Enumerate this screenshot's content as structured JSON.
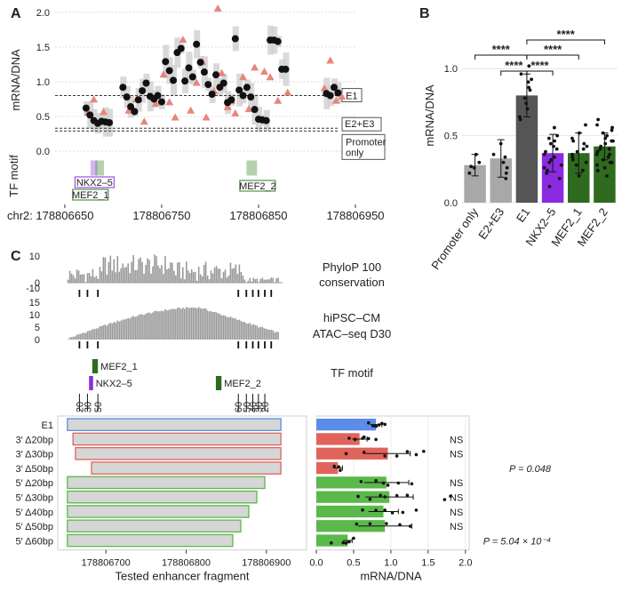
{
  "chart_data": [
    {
      "panel": "A",
      "type": "scatter",
      "ylabel": "mRNA/DNA",
      "y_ticks": [
        "0.0",
        "0.5",
        "1.0",
        "1.5",
        "2.0"
      ],
      "ylim": [
        0,
        2.05
      ],
      "xlim": [
        178806640,
        178806950
      ],
      "x_prefix": "chr2:",
      "x_ticks": [
        {
          "v": 178806650,
          "t": "178806650"
        },
        {
          "v": 178806750,
          "t": "178806750"
        },
        {
          "v": 178806850,
          "t": "178806850"
        },
        {
          "v": 178806950,
          "t": "178806950"
        }
      ],
      "reference_lines": [
        {
          "value": 0.8,
          "label": "E1"
        },
        {
          "value": 0.33,
          "label": "E2+E3"
        },
        {
          "value": 0.29,
          "label": "Promoter only"
        }
      ],
      "black_points": [
        {
          "x": 178806672,
          "y": 0.62
        },
        {
          "x": 178806676,
          "y": 0.52
        },
        {
          "x": 178806680,
          "y": 0.44
        },
        {
          "x": 178806684,
          "y": 0.4
        },
        {
          "x": 178806688,
          "y": 0.43
        },
        {
          "x": 178806692,
          "y": 0.42
        },
        {
          "x": 178806696,
          "y": 0.41
        },
        {
          "x": 178806710,
          "y": 0.92
        },
        {
          "x": 178806714,
          "y": 0.78
        },
        {
          "x": 178806718,
          "y": 0.64
        },
        {
          "x": 178806722,
          "y": 0.57
        },
        {
          "x": 178806726,
          "y": 0.74
        },
        {
          "x": 178806730,
          "y": 0.87
        },
        {
          "x": 178806734,
          "y": 0.98
        },
        {
          "x": 178806738,
          "y": 0.79
        },
        {
          "x": 178806742,
          "y": 0.75
        },
        {
          "x": 178806746,
          "y": 0.8
        },
        {
          "x": 178806750,
          "y": 0.71
        },
        {
          "x": 178806754,
          "y": 1.29
        },
        {
          "x": 178806758,
          "y": 1.16
        },
        {
          "x": 178806762,
          "y": 1.02
        },
        {
          "x": 178806766,
          "y": 1.42
        },
        {
          "x": 178806770,
          "y": 1.48
        },
        {
          "x": 178806774,
          "y": 1.01
        },
        {
          "x": 178806778,
          "y": 1.2
        },
        {
          "x": 178806782,
          "y": 1.07
        },
        {
          "x": 178806786,
          "y": 1.54
        },
        {
          "x": 178806790,
          "y": 1.28
        },
        {
          "x": 178806794,
          "y": 1.14
        },
        {
          "x": 178806798,
          "y": 0.96
        },
        {
          "x": 178806802,
          "y": 0.82
        },
        {
          "x": 178806806,
          "y": 1.1
        },
        {
          "x": 178806810,
          "y": 0.92
        },
        {
          "x": 178806814,
          "y": 0.98
        },
        {
          "x": 178806818,
          "y": 0.7
        },
        {
          "x": 178806822,
          "y": 0.74
        },
        {
          "x": 178806826,
          "y": 1.62
        },
        {
          "x": 178806830,
          "y": 0.88
        },
        {
          "x": 178806834,
          "y": 0.8
        },
        {
          "x": 178806838,
          "y": 0.92
        },
        {
          "x": 178806842,
          "y": 0.78
        },
        {
          "x": 178806846,
          "y": 0.6
        },
        {
          "x": 178806850,
          "y": 0.46
        },
        {
          "x": 178806854,
          "y": 0.45
        },
        {
          "x": 178806858,
          "y": 0.44
        },
        {
          "x": 178806862,
          "y": 1.6
        },
        {
          "x": 178806866,
          "y": 1.6
        },
        {
          "x": 178806870,
          "y": 1.58
        },
        {
          "x": 178806874,
          "y": 1.18
        },
        {
          "x": 178806878,
          "y": 1.18
        },
        {
          "x": 178806920,
          "y": 0.83
        },
        {
          "x": 178806924,
          "y": 0.8
        },
        {
          "x": 178806928,
          "y": 0.92
        },
        {
          "x": 178806932,
          "y": 0.84
        }
      ],
      "triangle_points": [
        {
          "x": 178806674,
          "y": 0.55
        },
        {
          "x": 178806680,
          "y": 0.74
        },
        {
          "x": 178806690,
          "y": 0.56
        },
        {
          "x": 178806716,
          "y": 0.58
        },
        {
          "x": 178806724,
          "y": 0.74
        },
        {
          "x": 178806732,
          "y": 0.42
        },
        {
          "x": 178806744,
          "y": 0.68
        },
        {
          "x": 178806752,
          "y": 1.1
        },
        {
          "x": 178806758,
          "y": 0.7
        },
        {
          "x": 178806764,
          "y": 0.48
        },
        {
          "x": 178806772,
          "y": 1.6
        },
        {
          "x": 178806780,
          "y": 0.58
        },
        {
          "x": 178806786,
          "y": 0.98
        },
        {
          "x": 178806792,
          "y": 1.28
        },
        {
          "x": 178806796,
          "y": 0.48
        },
        {
          "x": 178806804,
          "y": 0.86
        },
        {
          "x": 178806808,
          "y": 2.05
        },
        {
          "x": 178806812,
          "y": 1.12
        },
        {
          "x": 178806818,
          "y": 0.63
        },
        {
          "x": 178806822,
          "y": 0.72
        },
        {
          "x": 178806826,
          "y": 0.54
        },
        {
          "x": 178806834,
          "y": 1.06
        },
        {
          "x": 178806840,
          "y": 0.6
        },
        {
          "x": 178806846,
          "y": 1.2
        },
        {
          "x": 178806856,
          "y": 1.14
        },
        {
          "x": 178806862,
          "y": 1.06
        },
        {
          "x": 178806870,
          "y": 0.72
        },
        {
          "x": 178806880,
          "y": 0.84
        },
        {
          "x": 178806918,
          "y": 0.9
        },
        {
          "x": 178806924,
          "y": 1.3
        },
        {
          "x": 178806930,
          "y": 0.72
        },
        {
          "x": 178806936,
          "y": 0.78
        }
      ],
      "motif_label": "TF motif",
      "motifs": [
        {
          "name": "NKX2–5",
          "start": 178806677,
          "end": 178806683,
          "color": "#8a2be2"
        },
        {
          "name": "MEF2_1",
          "start": 178806682,
          "end": 178806690,
          "color": "#2e7d1f"
        },
        {
          "name": "MEF2_2",
          "start": 178806838,
          "end": 178806848,
          "color": "#2e7d1f"
        }
      ]
    },
    {
      "panel": "B",
      "type": "bar",
      "ylabel": "mRNA/DNA",
      "ylim": [
        0,
        1.3
      ],
      "y_ticks": [
        "0.0",
        "0.5",
        "1.0"
      ],
      "categories": [
        "Promoter only",
        "E2+E3",
        "E1",
        "NKX2–5",
        "MEF2_1",
        "MEF2_2"
      ],
      "values": [
        0.28,
        0.33,
        0.8,
        0.37,
        0.37,
        0.42
      ],
      "errors": [
        0.08,
        0.14,
        0.16,
        0.14,
        0.15,
        0.1
      ],
      "colors": [
        "#a8a8a8",
        "#a8a8a8",
        "#555555",
        "#8a2be2",
        "#2e6b1f",
        "#2e6b1f"
      ],
      "significance": [
        {
          "from": 0,
          "to": 2,
          "label": "****"
        },
        {
          "from": 1,
          "to": 2,
          "label": "****"
        },
        {
          "from": 2,
          "to": 3,
          "label": "****"
        },
        {
          "from": 2,
          "to": 4,
          "label": "****"
        },
        {
          "from": 2,
          "to": 5,
          "label": "****"
        }
      ],
      "points": [
        [
          0.22,
          0.3,
          0.36,
          0.26,
          0.27
        ],
        [
          0.18,
          0.26,
          0.3,
          0.36,
          0.44,
          0.22,
          0.34
        ],
        [
          0.64,
          0.7,
          0.78,
          0.84,
          0.92,
          1.02,
          0.86,
          0.62,
          0.74,
          0.9,
          0.96
        ],
        [
          0.12,
          0.22,
          0.28,
          0.34,
          0.4,
          0.46,
          0.5,
          0.56,
          0.3,
          0.24,
          0.38,
          0.44,
          0.18,
          0.32,
          0.48,
          0.26,
          0.36,
          0.42
        ],
        [
          0.2,
          0.28,
          0.34,
          0.4,
          0.46,
          0.52,
          0.58,
          0.3,
          0.36,
          0.42,
          0.24,
          0.48,
          0.32,
          0.38,
          0.44
        ],
        [
          0.2,
          0.26,
          0.3,
          0.34,
          0.38,
          0.42,
          0.46,
          0.5,
          0.54,
          0.58,
          0.62,
          0.28,
          0.36,
          0.4,
          0.44,
          0.48,
          0.32,
          0.52,
          0.56,
          0.24,
          0.3,
          0.4,
          0.46,
          0.36
        ]
      ]
    },
    {
      "panel": "C",
      "type": "bar",
      "track1_label": [
        "PhyloP 100",
        "conservation"
      ],
      "track1_ticks": [
        "10",
        "0",
        "-10"
      ],
      "track2_label": [
        "hiPSC–CM",
        "ATAC–seq D30"
      ],
      "track2_ticks": [
        "15",
        "10",
        "5",
        "0"
      ],
      "motif_label": "TF motif",
      "motifs": [
        {
          "name": "MEF2_1",
          "start": 178806683,
          "end": 178806690,
          "color": "#2e6b1f"
        },
        {
          "name": "NKX2–5",
          "start": 178806679,
          "end": 178806684,
          "color": "#8a2be2"
        },
        {
          "name": "MEF2_2",
          "start": 178806837,
          "end": 178806844,
          "color": "#2e6b1f"
        }
      ],
      "deletion_ticks_3p": [
        "20",
        "30",
        "50"
      ],
      "deletion_ticks_5p": [
        "60",
        "50",
        "40",
        "30",
        "20"
      ],
      "xlim": [
        178806640,
        178806950
      ],
      "x_ticks": [
        {
          "v": 178806700,
          "t": "178806700"
        },
        {
          "v": 178806800,
          "t": "178806800"
        },
        {
          "v": 178806900,
          "t": "178806900"
        }
      ],
      "xlabel": "Tested enhancer fragment",
      "rows": [
        {
          "label": "E1",
          "start": 178806652,
          "end": 178806918,
          "color": "#5b8ce8",
          "value": 0.8,
          "err": 0.08,
          "sig": "",
          "points": [
            0.7,
            0.76,
            0.84,
            0.92,
            0.88,
            0.8
          ]
        },
        {
          "label": "3′ Δ20bp",
          "start": 178806659,
          "end": 178806918,
          "color": "#e0645c",
          "value": 0.58,
          "err": 0.1,
          "sig": "NS",
          "points": [
            0.44,
            0.52,
            0.62,
            0.7,
            0.8,
            0.64
          ]
        },
        {
          "label": "3′ Δ30bp",
          "start": 178806662,
          "end": 178806918,
          "color": "#e0645c",
          "value": 0.96,
          "err": 0.3,
          "sig": "NS",
          "points": [
            0.4,
            0.64,
            0.92,
            1.08,
            1.22,
            1.34,
            1.44
          ]
        },
        {
          "label": "3′ Δ50bp",
          "start": 178806682,
          "end": 178806918,
          "color": "#e0645c",
          "value": 0.29,
          "err": 0.06,
          "sig": "P = 0.048",
          "points": [
            0.24,
            0.3,
            0.32
          ]
        },
        {
          "label": "5′ Δ20bp",
          "start": 178806652,
          "end": 178806898,
          "color": "#5bb84a",
          "value": 0.94,
          "err": 0.3,
          "sig": "NS",
          "points": [
            0.6,
            0.8,
            0.96,
            1.1,
            1.28,
            0.9
          ]
        },
        {
          "label": "5′ Δ30bp",
          "start": 178806652,
          "end": 178806888,
          "color": "#5bb84a",
          "value": 0.98,
          "err": 0.32,
          "sig": "NS",
          "points": [
            0.56,
            0.72,
            0.92,
            1.08,
            1.22,
            1.72,
            1.8,
            0.86
          ]
        },
        {
          "label": "5′ Δ40bp",
          "start": 178806652,
          "end": 178806878,
          "color": "#5bb84a",
          "value": 0.9,
          "err": 0.2,
          "sig": "NS",
          "points": [
            0.62,
            0.8,
            0.92,
            1.02,
            1.16,
            1.34
          ]
        },
        {
          "label": "5′ Δ50bp",
          "start": 178806652,
          "end": 178806868,
          "color": "#5bb84a",
          "value": 0.92,
          "err": 0.36,
          "sig": "NS",
          "points": [
            0.54,
            0.72,
            0.94,
            1.12,
            1.26
          ]
        },
        {
          "label": "5′ Δ60bp",
          "start": 178806652,
          "end": 178806858,
          "color": "#5bb84a",
          "value": 0.42,
          "err": 0.06,
          "sig": "P = 5.04 × 10⁻⁴",
          "points": [
            0.2,
            0.36,
            0.44,
            0.5,
            0.4
          ]
        }
      ],
      "value_xlabel": "mRNA/DNA",
      "value_ticks": [
        "0.0",
        "0.5",
        "1.0",
        "1.5",
        "2.0"
      ],
      "value_xlim": [
        0,
        2.05
      ]
    }
  ]
}
